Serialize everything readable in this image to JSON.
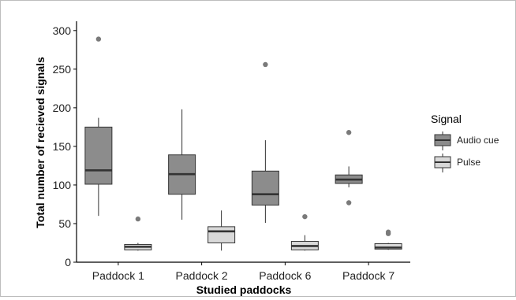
{
  "chart_data": {
    "type": "boxplot",
    "title": "",
    "xlabel": "Studied paddocks",
    "ylabel": "Total number of recieved signals",
    "ylim": [
      0,
      310
    ],
    "yticks": [
      0,
      50,
      100,
      150,
      200,
      250,
      300
    ],
    "categories": [
      "Paddock 1",
      "Paddock 2",
      "Paddock 6",
      "Paddock 7"
    ],
    "grid": false,
    "legend": {
      "title": "Signal",
      "position": "right"
    },
    "series": [
      {
        "name": "Audio cue",
        "color": "#8c8c8c",
        "boxes": [
          {
            "category": "Paddock 1",
            "whisker_low": 60,
            "q1": 101,
            "median": 119,
            "q3": 175,
            "whisker_high": 187,
            "outliers": [
              289
            ]
          },
          {
            "category": "Paddock 2",
            "whisker_low": 55,
            "q1": 88,
            "median": 114,
            "q3": 139,
            "whisker_high": 198,
            "outliers": []
          },
          {
            "category": "Paddock 6",
            "whisker_low": 51,
            "q1": 74,
            "median": 88,
            "q3": 118,
            "whisker_high": 158,
            "outliers": [
              256
            ]
          },
          {
            "category": "Paddock 7",
            "whisker_low": 97,
            "q1": 102,
            "median": 107,
            "q3": 113,
            "whisker_high": 124,
            "outliers": [
              168,
              77
            ]
          }
        ]
      },
      {
        "name": "Pulse",
        "color": "#d9d9d9",
        "boxes": [
          {
            "category": "Paddock 1",
            "whisker_low": 15,
            "q1": 16,
            "median": 20,
            "q3": 23,
            "whisker_high": 25,
            "outliers": [
              56
            ]
          },
          {
            "category": "Paddock 2",
            "whisker_low": 15,
            "q1": 25,
            "median": 40,
            "q3": 46,
            "whisker_high": 67,
            "outliers": []
          },
          {
            "category": "Paddock 6",
            "whisker_low": 15,
            "q1": 16,
            "median": 21,
            "q3": 27,
            "whisker_high": 35,
            "outliers": [
              59
            ]
          },
          {
            "category": "Paddock 7",
            "whisker_low": 16,
            "q1": 17,
            "median": 19,
            "q3": 24,
            "whisker_high": 25,
            "outliers": [
              37,
              39
            ]
          }
        ]
      }
    ]
  }
}
